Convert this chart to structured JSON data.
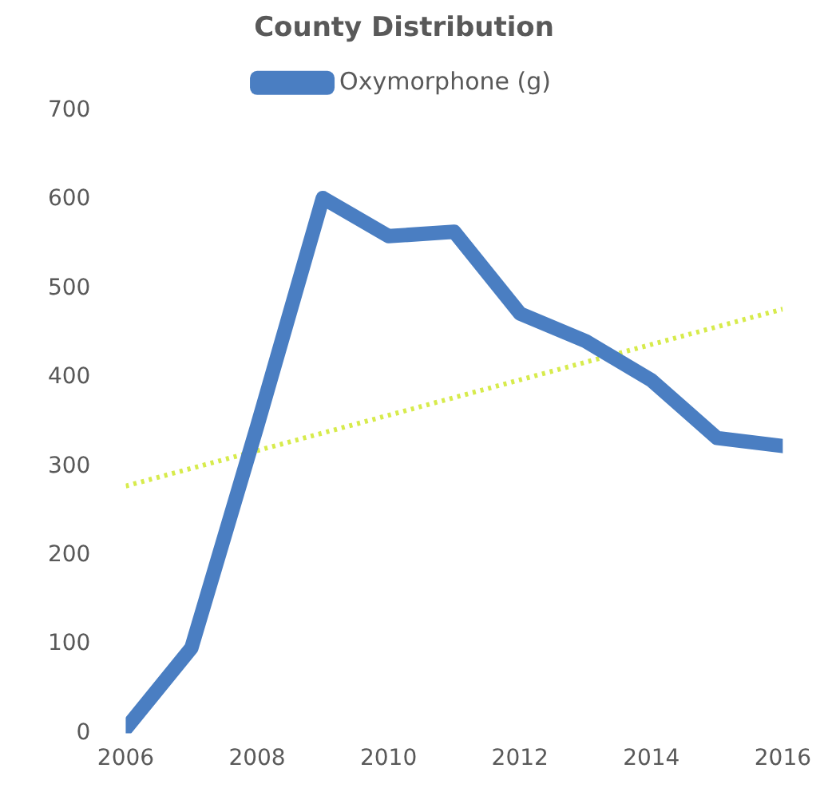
{
  "chart_data": {
    "type": "line",
    "title": "County Distribution",
    "x": [
      2006,
      2007,
      2008,
      2009,
      2010,
      2011,
      2012,
      2013,
      2014,
      2015,
      2016
    ],
    "series": [
      {
        "name": "Oxymorphone (g)",
        "color": "#4a7ec2",
        "values": [
          5,
          96,
          345,
          602,
          559,
          564,
          472,
          441,
          397,
          332,
          323
        ]
      },
      {
        "type": "line",
        "x": [
          2006,
          2016
        ],
        "values": [
          278,
          477
        ],
        "color": "#d7eb4c",
        "line_style": "dotted"
      }
    ],
    "xlim": [
      2006,
      2016
    ],
    "xticks": [
      2006,
      2008,
      2010,
      2012,
      2014,
      2016
    ],
    "ylim": [
      0,
      700
    ],
    "yticks": [
      0,
      100,
      200,
      300,
      400,
      500,
      600,
      700
    ],
    "legend": "top",
    "grid": false,
    "marker": "none"
  }
}
